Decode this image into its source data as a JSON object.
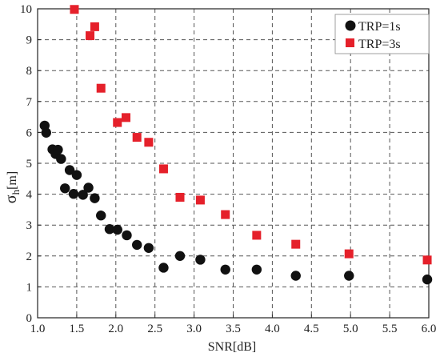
{
  "chart_data": {
    "type": "scatter",
    "xlabel": "SNR[dB]",
    "ylabel": "σ_h[m]",
    "ylabel_main": "σ",
    "ylabel_sub": "h",
    "ylabel_unit": "[m]",
    "xlim": [
      1.0,
      6.0
    ],
    "ylim": [
      0,
      10
    ],
    "xticks": [
      "1.0",
      "1.5",
      "2.0",
      "2.5",
      "3.0",
      "3.5",
      "4.0",
      "4.5",
      "5.0",
      "5.5",
      "6.0"
    ],
    "yticks": [
      "0",
      "1",
      "2",
      "3",
      "4",
      "5",
      "6",
      "7",
      "8",
      "9",
      "10"
    ],
    "grid": true,
    "legend_position": "top-right",
    "series": [
      {
        "name": "TRP=1s",
        "marker": "circle",
        "color": "#111111",
        "points": [
          [
            1.09,
            6.22
          ],
          [
            1.11,
            5.99
          ],
          [
            1.19,
            5.45
          ],
          [
            1.23,
            5.3
          ],
          [
            1.26,
            5.44
          ],
          [
            1.3,
            5.14
          ],
          [
            1.35,
            4.19
          ],
          [
            1.41,
            4.78
          ],
          [
            1.46,
            4.01
          ],
          [
            1.5,
            4.62
          ],
          [
            1.58,
            3.98
          ],
          [
            1.65,
            4.21
          ],
          [
            1.73,
            3.87
          ],
          [
            1.81,
            3.31
          ],
          [
            1.92,
            2.87
          ],
          [
            2.02,
            2.85
          ],
          [
            2.14,
            2.67
          ],
          [
            2.27,
            2.36
          ],
          [
            2.42,
            2.26
          ],
          [
            2.61,
            1.62
          ],
          [
            2.82,
            2.0
          ],
          [
            3.08,
            1.88
          ],
          [
            3.4,
            1.56
          ],
          [
            3.8,
            1.56
          ],
          [
            4.3,
            1.36
          ],
          [
            4.98,
            1.36
          ],
          [
            5.98,
            1.24
          ]
        ]
      },
      {
        "name": "TRP=3s",
        "marker": "square",
        "color": "#e5202a",
        "points": [
          [
            1.47,
            9.98
          ],
          [
            1.67,
            9.13
          ],
          [
            1.73,
            9.42
          ],
          [
            1.81,
            7.43
          ],
          [
            2.02,
            6.32
          ],
          [
            2.13,
            6.48
          ],
          [
            2.27,
            5.84
          ],
          [
            2.42,
            5.68
          ],
          [
            2.61,
            4.82
          ],
          [
            2.82,
            3.9
          ],
          [
            3.08,
            3.81
          ],
          [
            3.4,
            3.34
          ],
          [
            3.8,
            2.67
          ],
          [
            4.3,
            2.38
          ],
          [
            4.98,
            2.07
          ],
          [
            5.98,
            1.87
          ]
        ]
      }
    ]
  }
}
